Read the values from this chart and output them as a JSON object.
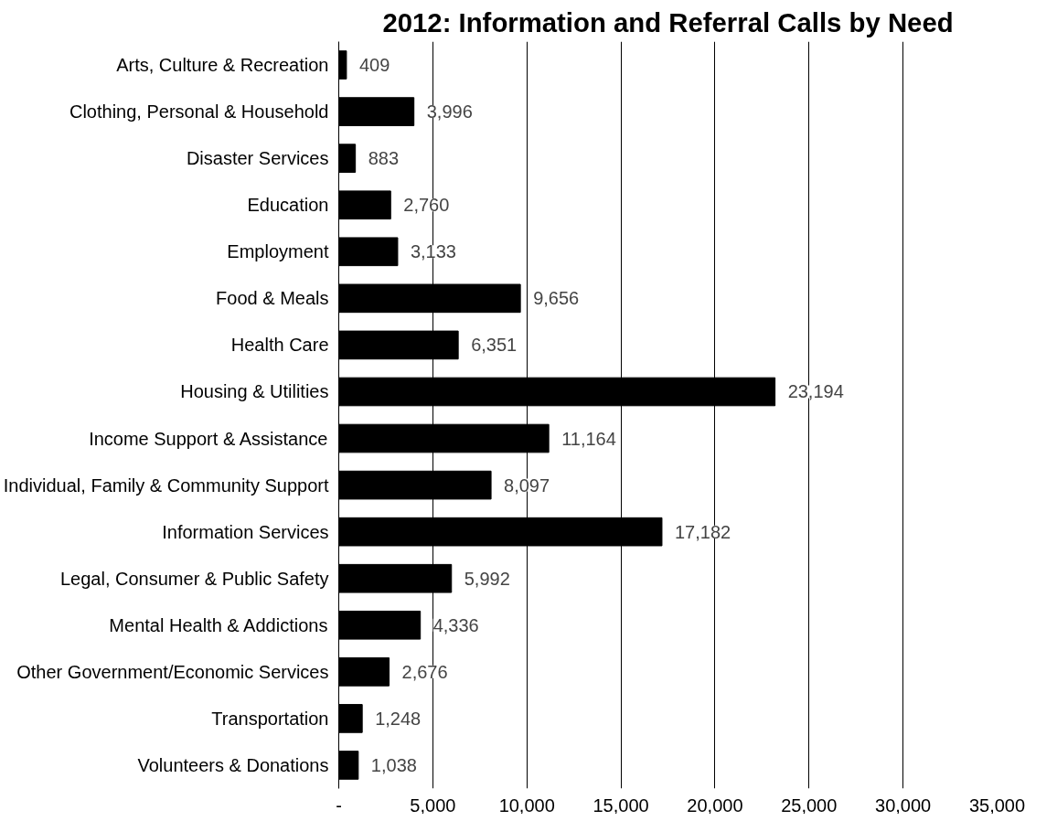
{
  "chart_data": {
    "type": "bar",
    "orientation": "horizontal",
    "title": "2012: Information and Referral Calls by Need",
    "categories": [
      "Arts, Culture & Recreation",
      "Clothing, Personal & Household",
      "Disaster Services",
      "Education",
      "Employment",
      "Food & Meals",
      "Health Care",
      "Housing & Utilities",
      "Income Support & Assistance",
      "Individual, Family & Community Support",
      "Information Services",
      "Legal, Consumer & Public Safety",
      "Mental Health & Addictions",
      "Other Government/Economic Services",
      "Transportation",
      "Volunteers & Donations"
    ],
    "values": [
      409,
      3996,
      883,
      2760,
      3133,
      9656,
      6351,
      23194,
      11164,
      8097,
      17182,
      5992,
      4336,
      2676,
      1248,
      1038
    ],
    "value_labels": [
      "409",
      "3,996",
      "883",
      "2,760",
      "3,133",
      "9,656",
      "6,351",
      "23,194",
      "11,164",
      "8,097",
      "17,182",
      "5,992",
      "4,336",
      "2,676",
      "1,248",
      "1,038"
    ],
    "color": "#000000",
    "xlim": [
      0,
      35000
    ],
    "xticks": [
      {
        "value": 0,
        "label": "-"
      },
      {
        "value": 5000,
        "label": "5,000"
      },
      {
        "value": 10000,
        "label": "10,000"
      },
      {
        "value": 15000,
        "label": "15,000"
      },
      {
        "value": 20000,
        "label": "20,000"
      },
      {
        "value": 25000,
        "label": "25,000"
      },
      {
        "value": 30000,
        "label": "30,000"
      },
      {
        "value": 35000,
        "label": "35,000"
      }
    ],
    "grid": "x"
  }
}
